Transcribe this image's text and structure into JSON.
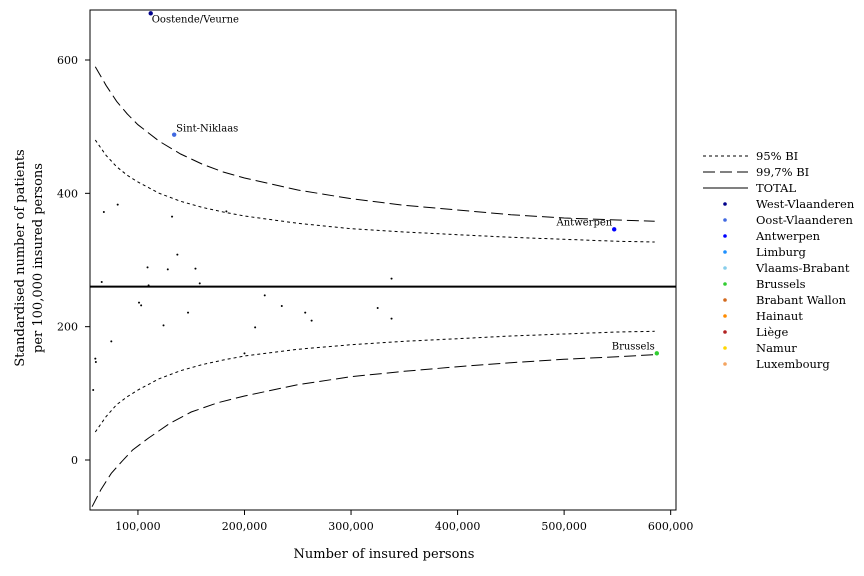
{
  "chart_data": {
    "type": "scatter",
    "xlabel": "Number of insured persons",
    "ylabel_line1": "Standardised number of patients",
    "ylabel_line2": "per 100,000 insured persons",
    "xlim": [
      55000,
      605000
    ],
    "ylim": [
      -75,
      675
    ],
    "x_ticks": [
      100000,
      200000,
      300000,
      400000,
      500000,
      600000
    ],
    "x_tick_labels": [
      "100,000",
      "200,000",
      "300,000",
      "400,000",
      "500,000",
      "600,000"
    ],
    "y_ticks": [
      0,
      200,
      400,
      600
    ],
    "y_tick_labels": [
      "0",
      "200",
      "400",
      "600"
    ],
    "grid": false,
    "legend_position": "right",
    "total": 260,
    "ci95_upper": [
      [
        60000,
        480
      ],
      [
        70000,
        457
      ],
      [
        80000,
        440
      ],
      [
        90000,
        427
      ],
      [
        100000,
        417
      ],
      [
        120000,
        400
      ],
      [
        140000,
        388
      ],
      [
        160000,
        379
      ],
      [
        180000,
        372
      ],
      [
        200000,
        366
      ],
      [
        250000,
        355
      ],
      [
        300000,
        347
      ],
      [
        350000,
        342
      ],
      [
        400000,
        338
      ],
      [
        450000,
        334
      ],
      [
        500000,
        331
      ],
      [
        550000,
        328
      ],
      [
        585000,
        327
      ]
    ],
    "ci95_lower": [
      [
        60000,
        42
      ],
      [
        70000,
        65
      ],
      [
        80000,
        83
      ],
      [
        90000,
        95
      ],
      [
        100000,
        105
      ],
      [
        120000,
        122
      ],
      [
        140000,
        134
      ],
      [
        160000,
        143
      ],
      [
        180000,
        150
      ],
      [
        200000,
        156
      ],
      [
        250000,
        166
      ],
      [
        300000,
        173
      ],
      [
        350000,
        178
      ],
      [
        400000,
        182
      ],
      [
        450000,
        186
      ],
      [
        500000,
        189
      ],
      [
        550000,
        192
      ],
      [
        585000,
        193
      ]
    ],
    "ci997_upper": [
      [
        60000,
        590
      ],
      [
        70000,
        562
      ],
      [
        80000,
        538
      ],
      [
        90000,
        519
      ],
      [
        100000,
        503
      ],
      [
        120000,
        478
      ],
      [
        140000,
        459
      ],
      [
        160000,
        444
      ],
      [
        180000,
        432
      ],
      [
        200000,
        423
      ],
      [
        250000,
        405
      ],
      [
        300000,
        392
      ],
      [
        350000,
        382
      ],
      [
        400000,
        375
      ],
      [
        450000,
        368
      ],
      [
        500000,
        363
      ],
      [
        550000,
        360
      ],
      [
        585000,
        358
      ]
    ],
    "ci997_lower": [
      [
        57000,
        -70
      ],
      [
        65000,
        -45
      ],
      [
        75000,
        -20
      ],
      [
        85000,
        -2
      ],
      [
        95000,
        15
      ],
      [
        110000,
        33
      ],
      [
        130000,
        55
      ],
      [
        150000,
        72
      ],
      [
        175000,
        86
      ],
      [
        200000,
        96
      ],
      [
        250000,
        113
      ],
      [
        300000,
        125
      ],
      [
        350000,
        133
      ],
      [
        400000,
        140
      ],
      [
        450000,
        146
      ],
      [
        500000,
        151
      ],
      [
        550000,
        155
      ],
      [
        585000,
        158
      ]
    ],
    "series": [
      {
        "name": "West-Vlaanderen",
        "color": "#00008b",
        "points": [
          [
            112000,
            670
          ]
        ]
      },
      {
        "name": "Oost-Vlaanderen",
        "color": "#4169e1",
        "points": [
          [
            134000,
            488
          ]
        ]
      },
      {
        "name": "Antwerpen",
        "color": "#0000ff",
        "points": [
          [
            547000,
            346
          ]
        ]
      },
      {
        "name": "Limburg",
        "color": "#1e90ff",
        "points": []
      },
      {
        "name": "Vlaams-Brabant",
        "color": "#87ceeb",
        "points": []
      },
      {
        "name": "Brussels",
        "color": "#32cd32",
        "points": [
          [
            587000,
            160
          ]
        ]
      },
      {
        "name": "Brabant Wallon",
        "color": "#d2691e",
        "points": []
      },
      {
        "name": "Hainaut",
        "color": "#ff8c00",
        "points": []
      },
      {
        "name": "Liège",
        "color": "#b22222",
        "points": []
      },
      {
        "name": "Namur",
        "color": "#ffd700",
        "points": []
      },
      {
        "name": "Luxembourg",
        "color": "#f4a460",
        "points": []
      }
    ],
    "other_points": [
      [
        68000,
        372
      ],
      [
        81000,
        383
      ],
      [
        66000,
        267
      ],
      [
        109000,
        289
      ],
      [
        110000,
        262
      ],
      [
        128000,
        286
      ],
      [
        132000,
        365
      ],
      [
        137000,
        308
      ],
      [
        154000,
        287
      ],
      [
        158000,
        265
      ],
      [
        183000,
        373
      ],
      [
        338000,
        272
      ],
      [
        58000,
        105
      ],
      [
        60000,
        152
      ],
      [
        60500,
        147
      ],
      [
        75000,
        178
      ],
      [
        101000,
        236
      ],
      [
        103000,
        232
      ],
      [
        124000,
        202
      ],
      [
        147000,
        221
      ],
      [
        200000,
        160
      ],
      [
        210000,
        199
      ],
      [
        219000,
        247
      ],
      [
        235000,
        231
      ],
      [
        257000,
        221
      ],
      [
        263000,
        209
      ],
      [
        325000,
        228
      ],
      [
        338000,
        212
      ]
    ],
    "annotations": [
      {
        "text": "Oostende/Veurne",
        "x": 112000,
        "y": 670
      },
      {
        "text": "Sint-Niklaas",
        "x": 134000,
        "y": 488
      },
      {
        "text": "Antwerpen",
        "x": 547000,
        "y": 346
      },
      {
        "text": "Brussels",
        "x": 587000,
        "y": 160
      }
    ],
    "legend_lines": [
      {
        "label": "95% BI",
        "style": "dotted"
      },
      {
        "label": "99,7% BI",
        "style": "dashed"
      },
      {
        "label": "TOTAL",
        "style": "solid"
      }
    ]
  }
}
